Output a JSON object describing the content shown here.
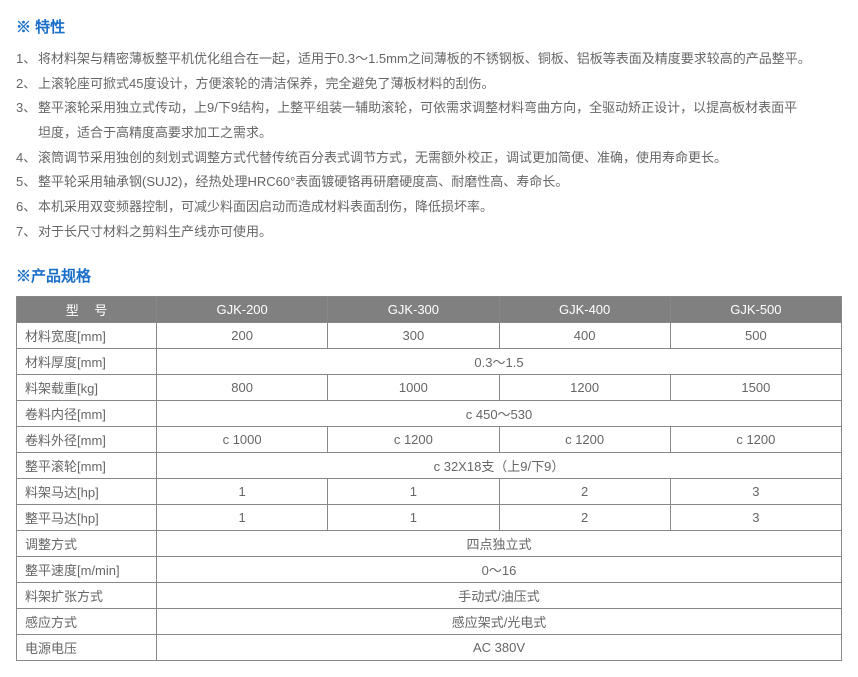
{
  "featuresTitle": "※ 特性",
  "features": [
    {
      "num": "1、",
      "text": "将材料架与精密薄板整平机优化组合在一起，适用于0.3～1.5mm之间薄板的不锈钢板、铜板、铝板等表面及精度要求较高的产品整平。"
    },
    {
      "num": "2、",
      "text": "上滚轮座可掀式45度设计，方便滚轮的清洁保养，完全避免了薄板材料的刮伤。"
    },
    {
      "num": "3、",
      "text": "整平滚轮采用独立式传动，上9/下9结构，上整平组装一辅助滚轮，可依需求调整材料弯曲方向，全驱动矫正设计，以提高板材表面平",
      "cont": "坦度，适合于高精度高要求加工之需求。"
    },
    {
      "num": "4、",
      "text": "滚筒调节采用独创的刻划式调整方式代替传统百分表式调节方式，无需额外校正，调试更加简便、准确，使用寿命更长。"
    },
    {
      "num": "5、",
      "text": "整平轮采用轴承钢(SUJ2)，经热处理HRC60°表面镀硬铬再研磨硬度高、耐磨性高、寿命长。"
    },
    {
      "num": "6、",
      "text": "本机采用双变频器控制，可减少料面因启动而造成材料表面刮伤，降低损坏率。"
    },
    {
      "num": "7、",
      "text": "对于长尺寸材料之剪料生产线亦可使用。"
    }
  ],
  "specTitle": "※产品规格",
  "table": {
    "headRowBg": "#808080",
    "headTextColor": "#ffffff",
    "borderColor": "#888888",
    "cellTextColor": "#666666",
    "modelLabel": "型 号",
    "models": [
      "GJK-200",
      "GJK-300",
      "GJK-400",
      "GJK-500"
    ],
    "rows": [
      {
        "label": "材料宽度[mm]",
        "cells": [
          "200",
          "300",
          "400",
          "500"
        ]
      },
      {
        "label": "材料厚度[mm]",
        "span": "0.3～1.5"
      },
      {
        "label": "料架载重[kg]",
        "cells": [
          "800",
          "1000",
          "1200",
          "1500"
        ]
      },
      {
        "label": "卷料内径[mm]",
        "span": "c 450～530"
      },
      {
        "label": "卷料外径[mm]",
        "cells": [
          "c 1000",
          "c 1200",
          "c 1200",
          "c 1200"
        ]
      },
      {
        "label": "整平滚轮[mm]",
        "span": "c 32X18支（上9/下9）"
      },
      {
        "label": "料架马达[hp]",
        "cells": [
          "1",
          "1",
          "2",
          "3"
        ]
      },
      {
        "label": "整平马达[hp]",
        "cells": [
          "1",
          "1",
          "2",
          "3"
        ]
      },
      {
        "label": "调整方式",
        "span": "四点独立式"
      },
      {
        "label": "整平速度[m/min]",
        "span": "0～16"
      },
      {
        "label": "料架扩张方式",
        "span": "手动式/油压式"
      },
      {
        "label": "感应方式",
        "span": "感应架式/光电式"
      },
      {
        "label": "电源电压",
        "span": "AC 380V"
      }
    ]
  }
}
